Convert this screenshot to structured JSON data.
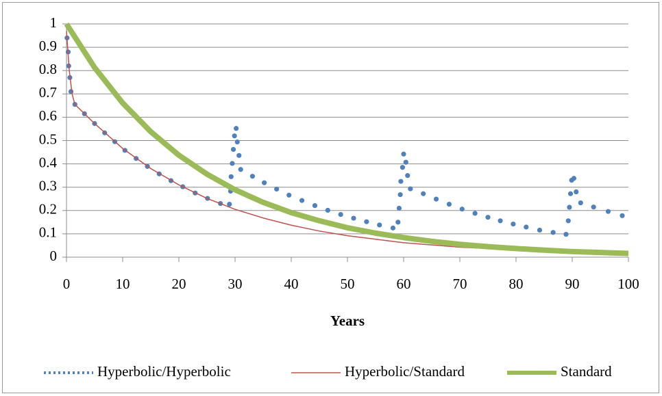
{
  "chart_data": {
    "type": "line",
    "xlabel": "Years",
    "xlim": [
      0,
      100
    ],
    "xticks": [
      0,
      10,
      20,
      30,
      40,
      50,
      60,
      70,
      80,
      90,
      100
    ],
    "ylim": [
      0,
      1
    ],
    "yticks": [
      0,
      0.1,
      0.2,
      0.3,
      0.4,
      0.5,
      0.6,
      0.7,
      0.8,
      0.9,
      1
    ],
    "grid": true,
    "legend": "bottom",
    "series": [
      {
        "name": "Hyperbolic/Hyperbolic",
        "color": "#4f81bd",
        "style": "dotted",
        "x": [
          0.1,
          0.3,
          0.4,
          0.6,
          0.8,
          1.5,
          3.2,
          5.0,
          6.8,
          8.6,
          10.4,
          12.4,
          14.4,
          16.5,
          18.6,
          20.7,
          22.9,
          25.1,
          27.4,
          29.0,
          29.2,
          29.3,
          29.5,
          29.7,
          29.9,
          30.2,
          30.4,
          30.7,
          31.0,
          33.1,
          35.2,
          37.4,
          39.6,
          41.9,
          44.2,
          46.5,
          48.8,
          51.1,
          53.4,
          55.7,
          58.1,
          59.0,
          59.2,
          59.4,
          59.5,
          59.8,
          60.0,
          60.4,
          60.7,
          61.2,
          63.5,
          65.8,
          68.1,
          70.4,
          72.7,
          75.0,
          77.2,
          79.5,
          81.8,
          84.2,
          86.6,
          88.9,
          89.3,
          89.5,
          89.7,
          89.9,
          90.3,
          90.7,
          91.5,
          93.8,
          96.4,
          98.9
        ],
        "values": [
          0.94,
          0.88,
          0.82,
          0.77,
          0.71,
          0.655,
          0.615,
          0.573,
          0.533,
          0.495,
          0.458,
          0.423,
          0.389,
          0.357,
          0.328,
          0.302,
          0.275,
          0.252,
          0.23,
          0.227,
          0.283,
          0.345,
          0.402,
          0.462,
          0.52,
          0.552,
          0.494,
          0.436,
          0.376,
          0.347,
          0.319,
          0.292,
          0.266,
          0.243,
          0.221,
          0.201,
          0.183,
          0.167,
          0.152,
          0.138,
          0.125,
          0.15,
          0.21,
          0.268,
          0.325,
          0.385,
          0.442,
          0.407,
          0.35,
          0.293,
          0.272,
          0.249,
          0.227,
          0.206,
          0.188,
          0.171,
          0.156,
          0.142,
          0.129,
          0.116,
          0.106,
          0.098,
          0.156,
          0.214,
          0.272,
          0.33,
          0.338,
          0.28,
          0.233,
          0.215,
          0.196,
          0.178
        ]
      },
      {
        "name": "Hyperbolic/Standard",
        "color": "#c0504d",
        "style": "thin",
        "x": [
          0,
          0.5,
          1,
          1.5,
          3.2,
          5,
          10,
          15,
          20,
          25,
          30,
          35,
          40,
          45,
          50,
          60,
          70,
          80,
          90,
          100
        ],
        "values": [
          0.97,
          0.8,
          0.7,
          0.655,
          0.615,
          0.573,
          0.466,
          0.38,
          0.31,
          0.252,
          0.205,
          0.168,
          0.137,
          0.112,
          0.092,
          0.062,
          0.043,
          0.031,
          0.023,
          0.018
        ]
      },
      {
        "name": "Standard",
        "color": "#9bbb59",
        "style": "thick",
        "x": [
          0,
          5,
          10,
          15,
          20,
          25,
          30,
          35,
          40,
          45,
          50,
          55,
          60,
          65,
          70,
          75,
          80,
          85,
          90,
          95,
          100
        ],
        "values": [
          1,
          0.813,
          0.661,
          0.538,
          0.437,
          0.356,
          0.289,
          0.235,
          0.191,
          0.156,
          0.126,
          0.103,
          0.084,
          0.068,
          0.055,
          0.045,
          0.037,
          0.03,
          0.024,
          0.02,
          0.016
        ]
      }
    ]
  }
}
